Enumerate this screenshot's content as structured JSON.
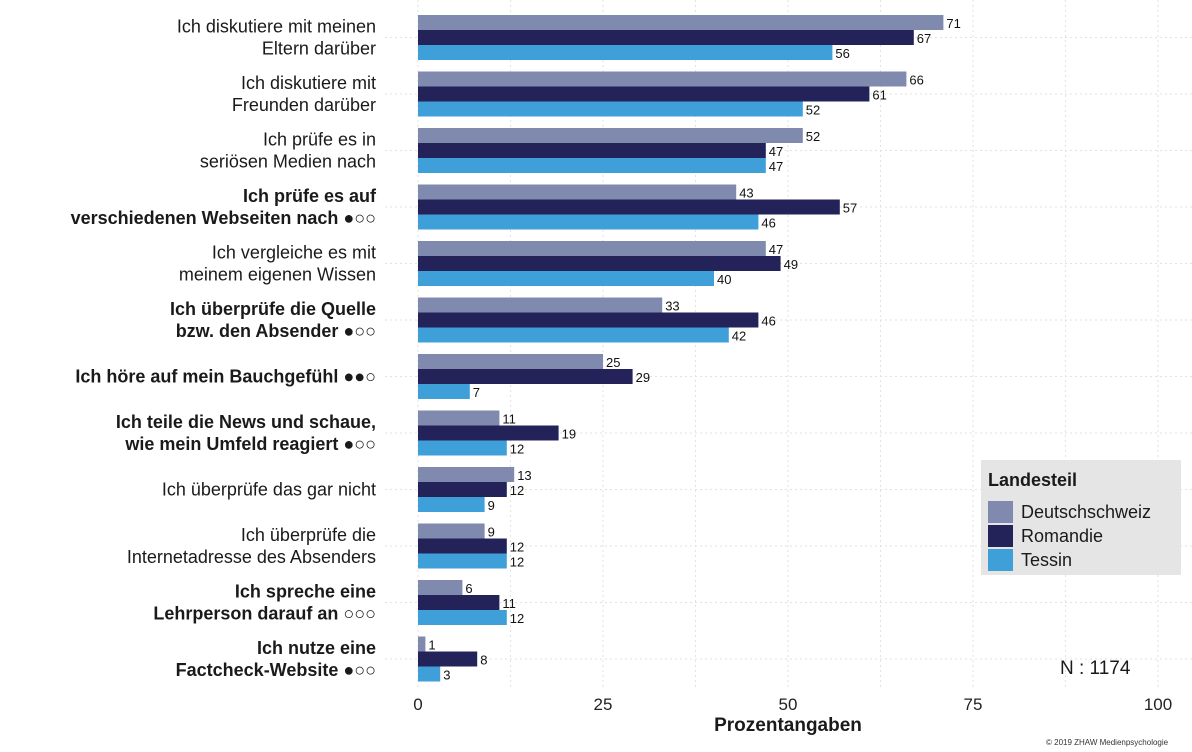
{
  "chart_data": {
    "type": "bar",
    "orientation": "horizontal",
    "categories": [
      {
        "lines": [
          "Ich diskutiere mit meinen",
          "Eltern darüber"
        ],
        "bold": false
      },
      {
        "lines": [
          "Ich diskutiere mit",
          "Freunden darüber"
        ],
        "bold": false
      },
      {
        "lines": [
          "Ich prüfe es in",
          "seriösen Medien nach"
        ],
        "bold": false
      },
      {
        "lines": [
          "Ich prüfe es auf",
          "verschiedenen Webseiten nach ●○○"
        ],
        "bold": true
      },
      {
        "lines": [
          "Ich vergleiche es mit",
          "meinem eigenen Wissen"
        ],
        "bold": false
      },
      {
        "lines": [
          "Ich überprüfe die Quelle",
          "bzw. den Absender ●○○"
        ],
        "bold": true
      },
      {
        "lines": [
          "Ich höre auf mein Bauchgefühl ●●○"
        ],
        "bold": true
      },
      {
        "lines": [
          "Ich teile die News und schaue,",
          "wie mein Umfeld reagiert ●○○"
        ],
        "bold": true
      },
      {
        "lines": [
          "Ich überprüfe das gar nicht"
        ],
        "bold": false
      },
      {
        "lines": [
          "Ich überprüfe die",
          "Internetadresse des Absenders"
        ],
        "bold": false
      },
      {
        "lines": [
          "Ich spreche eine",
          "Lehrperson darauf an ○○○"
        ],
        "bold": true
      },
      {
        "lines": [
          "Ich nutze eine",
          "Factcheck-Website ●○○"
        ],
        "bold": true
      }
    ],
    "series": [
      {
        "name": "Deutschschweiz",
        "color": "#7f8aae",
        "values": [
          71,
          66,
          52,
          43,
          47,
          33,
          25,
          11,
          13,
          9,
          6,
          1
        ]
      },
      {
        "name": "Romandie",
        "color": "#23235a",
        "values": [
          67,
          61,
          47,
          57,
          49,
          46,
          29,
          19,
          12,
          12,
          11,
          8
        ]
      },
      {
        "name": "Tessin",
        "color": "#3f9fd9",
        "values": [
          56,
          52,
          47,
          46,
          40,
          42,
          7,
          12,
          9,
          12,
          12,
          3
        ]
      }
    ],
    "xlabel": "Prozentangaben",
    "xticks": [
      0,
      25,
      50,
      75,
      100
    ],
    "xlim": [
      0,
      100
    ],
    "grid": true,
    "legend": {
      "title": "Landesteil",
      "placement": "bottom-right"
    },
    "annotation": "N : 1174",
    "footer": "© 2019 ZHAW Medienpsychologie"
  }
}
